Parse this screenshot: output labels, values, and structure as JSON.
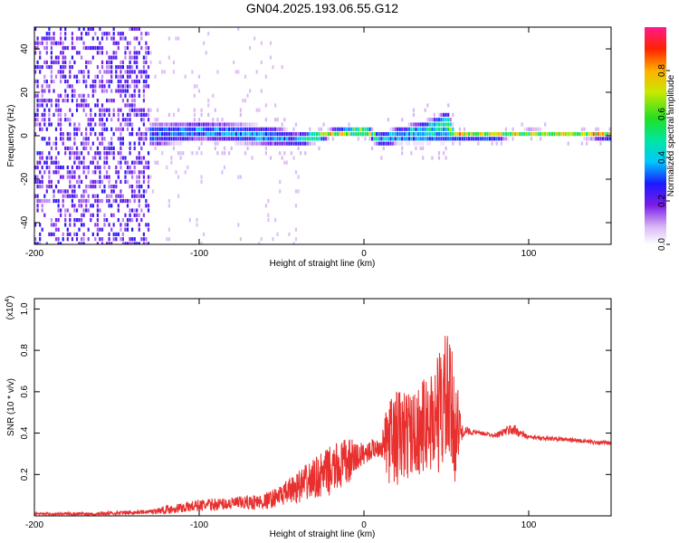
{
  "title": "GN04.2025.193.06.55.G12",
  "chart_data": [
    {
      "type": "heatmap",
      "xlabel": "Height of straight line (km)",
      "ylabel": "Frequency (Hz)",
      "xlim": [
        -200,
        150
      ],
      "ylim": [
        -50,
        50
      ],
      "xticks": [
        "-200",
        "-100",
        "0",
        "100"
      ],
      "yticks": [
        "-40",
        "-20",
        "0",
        "20",
        "40"
      ],
      "colorbar": {
        "label": "Normalized spectral amplitude",
        "range": [
          0,
          1
        ],
        "ticks": [
          "0.0",
          "0.2",
          "0.4",
          "0.6",
          "0.8"
        ]
      },
      "ridge_profile": {
        "x_km": [
          -200,
          -130,
          -100,
          -60,
          -40,
          -20,
          0,
          10,
          20,
          40,
          50,
          55,
          80,
          100,
          150
        ],
        "center_hz": [
          0,
          0,
          2,
          0,
          -2,
          1,
          2,
          -2,
          0,
          2,
          4,
          0,
          0,
          1,
          0
        ],
        "half_width_hz": [
          50,
          6,
          5,
          5,
          4,
          2,
          2,
          4,
          4,
          6,
          8,
          2,
          2,
          2,
          2
        ],
        "peak_amplitude": [
          0.2,
          0.4,
          0.4,
          0.45,
          0.4,
          0.95,
          0.95,
          0.5,
          0.5,
          0.6,
          0.6,
          0.95,
          0.95,
          0.8,
          0.95
        ]
      }
    },
    {
      "type": "line",
      "xlabel": "Height of straight line (km)",
      "ylabel": "SNR (10 * v/v)",
      "scale_label": "(x10",
      "scale_exp": "4",
      "xlim": [
        -200,
        150
      ],
      "ylim": [
        0,
        1.05
      ],
      "xticks": [
        "-200",
        "-100",
        "0",
        "100"
      ],
      "yticks": [
        "0.2",
        "0.4",
        "0.6",
        "0.8",
        "1.0"
      ],
      "series": [
        {
          "color": "#e8302f",
          "x": [
            -200,
            -160,
            -130,
            -120,
            -100,
            -80,
            -60,
            -50,
            -40,
            -30,
            -20,
            -10,
            0,
            10,
            15,
            20,
            30,
            40,
            45,
            50,
            55,
            60,
            62,
            70,
            80,
            90,
            100,
            120,
            150
          ],
          "y": [
            0.01,
            0.01,
            0.02,
            0.03,
            0.05,
            0.06,
            0.07,
            0.1,
            0.14,
            0.18,
            0.22,
            0.26,
            0.3,
            0.34,
            0.36,
            0.38,
            0.4,
            0.45,
            0.5,
            0.55,
            0.45,
            0.4,
            0.41,
            0.4,
            0.39,
            0.42,
            0.38,
            0.37,
            0.35
          ],
          "noise": [
            0.005,
            0.01,
            0.01,
            0.02,
            0.03,
            0.03,
            0.04,
            0.05,
            0.08,
            0.1,
            0.12,
            0.12,
            0.05,
            0.05,
            0.2,
            0.25,
            0.2,
            0.25,
            0.3,
            0.35,
            0.3,
            0.02,
            0.02,
            0.01,
            0.01,
            0.03,
            0.01,
            0.01,
            0.01
          ]
        }
      ]
    }
  ]
}
